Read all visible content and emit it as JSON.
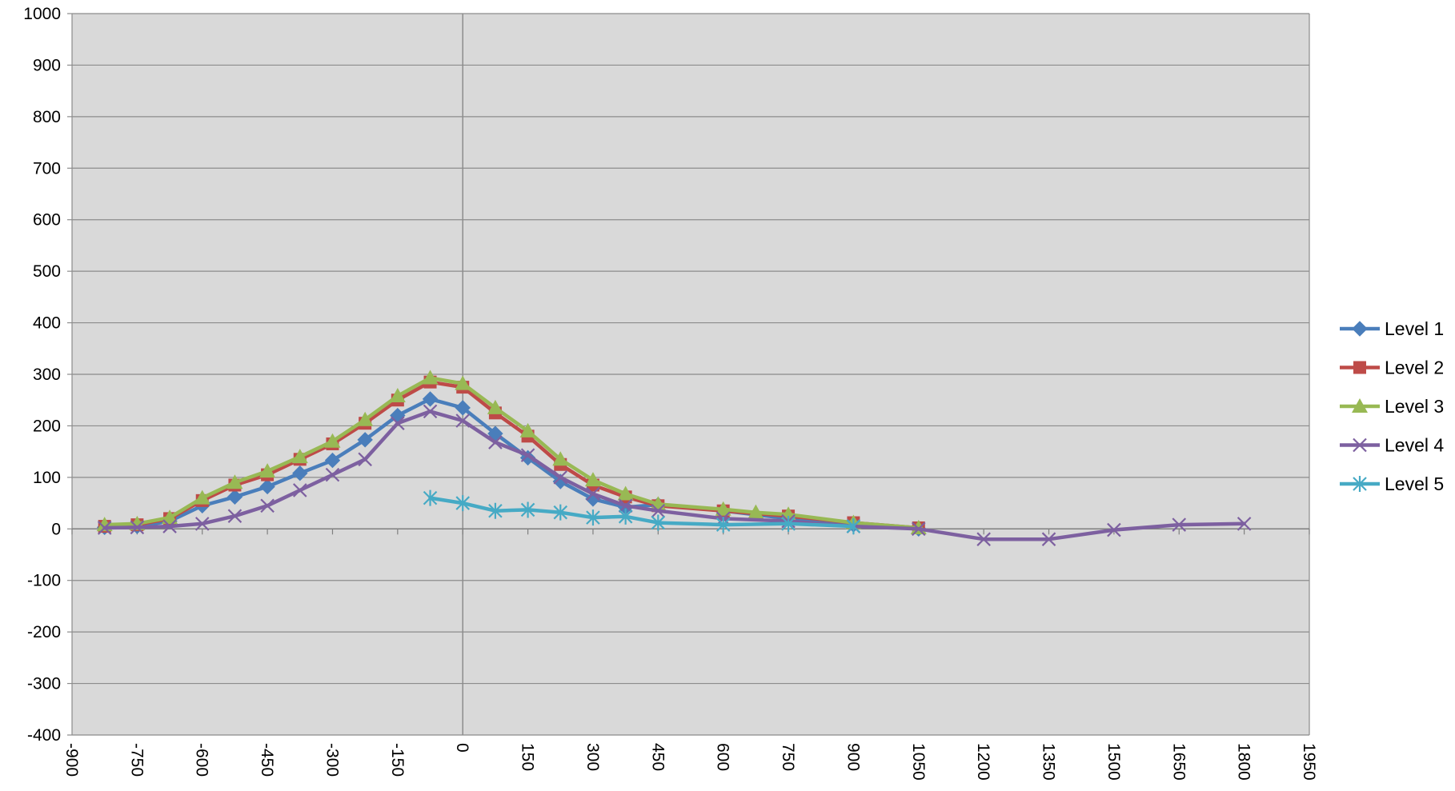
{
  "chart_data": {
    "type": "line",
    "title": "",
    "xlabel": "",
    "ylabel": "",
    "xlim": [
      -900,
      1950
    ],
    "ylim": [
      -400,
      1000
    ],
    "x_ticks": [
      -900,
      -750,
      -600,
      -450,
      -300,
      -150,
      0,
      150,
      300,
      450,
      600,
      750,
      900,
      1050,
      1200,
      1350,
      1500,
      1650,
      1800,
      1950
    ],
    "y_ticks": [
      -400,
      -300,
      -200,
      -100,
      0,
      100,
      200,
      300,
      400,
      500,
      600,
      700,
      800,
      900,
      1000
    ],
    "grid": "horizontal",
    "legend_position": "right",
    "plot_background": "#d9d9d9",
    "series": [
      {
        "name": "Level 1",
        "color": "#4a7ebb",
        "marker": "diamond",
        "points": [
          [
            -825,
            3
          ],
          [
            -750,
            5
          ],
          [
            -675,
            15
          ],
          [
            -600,
            45
          ],
          [
            -525,
            62
          ],
          [
            -450,
            82
          ],
          [
            -375,
            108
          ],
          [
            -300,
            133
          ],
          [
            -225,
            173
          ],
          [
            -150,
            220
          ],
          [
            -75,
            252
          ],
          [
            0,
            235
          ],
          [
            75,
            185
          ],
          [
            150,
            138
          ],
          [
            225,
            92
          ],
          [
            300,
            58
          ],
          [
            375,
            42
          ],
          [
            450,
            47
          ],
          [
            600,
            35
          ],
          [
            750,
            20
          ],
          [
            900,
            8
          ],
          [
            1050,
            0
          ]
        ]
      },
      {
        "name": "Level 2",
        "color": "#be4b48",
        "marker": "square",
        "points": [
          [
            -825,
            5
          ],
          [
            -750,
            8
          ],
          [
            -675,
            20
          ],
          [
            -600,
            55
          ],
          [
            -525,
            85
          ],
          [
            -450,
            105
          ],
          [
            -375,
            135
          ],
          [
            -300,
            165
          ],
          [
            -225,
            205
          ],
          [
            -150,
            250
          ],
          [
            -75,
            285
          ],
          [
            0,
            275
          ],
          [
            75,
            225
          ],
          [
            150,
            180
          ],
          [
            225,
            125
          ],
          [
            300,
            85
          ],
          [
            375,
            62
          ],
          [
            450,
            45
          ],
          [
            600,
            35
          ],
          [
            750,
            25
          ],
          [
            900,
            12
          ],
          [
            1050,
            2
          ]
        ]
      },
      {
        "name": "Level 3",
        "color": "#98b954",
        "marker": "triangle",
        "points": [
          [
            -825,
            8
          ],
          [
            -750,
            10
          ],
          [
            -675,
            22
          ],
          [
            -600,
            60
          ],
          [
            -525,
            90
          ],
          [
            -450,
            112
          ],
          [
            -375,
            140
          ],
          [
            -300,
            170
          ],
          [
            -225,
            212
          ],
          [
            -150,
            258
          ],
          [
            -75,
            293
          ],
          [
            0,
            282
          ],
          [
            75,
            235
          ],
          [
            150,
            190
          ],
          [
            225,
            135
          ],
          [
            300,
            95
          ],
          [
            375,
            68
          ],
          [
            450,
            48
          ],
          [
            600,
            38
          ],
          [
            675,
            32
          ],
          [
            750,
            28
          ],
          [
            900,
            12
          ],
          [
            1050,
            2
          ]
        ]
      },
      {
        "name": "Level 4",
        "color": "#7d60a0",
        "marker": "x",
        "points": [
          [
            -825,
            2
          ],
          [
            -750,
            3
          ],
          [
            -675,
            5
          ],
          [
            -600,
            10
          ],
          [
            -525,
            25
          ],
          [
            -450,
            45
          ],
          [
            -375,
            75
          ],
          [
            -300,
            105
          ],
          [
            -225,
            135
          ],
          [
            -150,
            205
          ],
          [
            -75,
            228
          ],
          [
            0,
            210
          ],
          [
            75,
            168
          ],
          [
            150,
            143
          ],
          [
            225,
            100
          ],
          [
            300,
            68
          ],
          [
            375,
            45
          ],
          [
            450,
            35
          ],
          [
            600,
            20
          ],
          [
            750,
            15
          ],
          [
            900,
            5
          ],
          [
            1050,
            0
          ],
          [
            1200,
            -20
          ],
          [
            1350,
            -20
          ],
          [
            1500,
            -2
          ],
          [
            1650,
            8
          ],
          [
            1800,
            10
          ]
        ]
      },
      {
        "name": "Level 5",
        "color": "#46aac5",
        "marker": "asterisk",
        "points": [
          [
            -75,
            60
          ],
          [
            0,
            50
          ],
          [
            75,
            35
          ],
          [
            150,
            37
          ],
          [
            225,
            32
          ],
          [
            300,
            22
          ],
          [
            375,
            24
          ],
          [
            450,
            12
          ],
          [
            600,
            8
          ],
          [
            750,
            10
          ],
          [
            900,
            5
          ]
        ]
      }
    ]
  }
}
